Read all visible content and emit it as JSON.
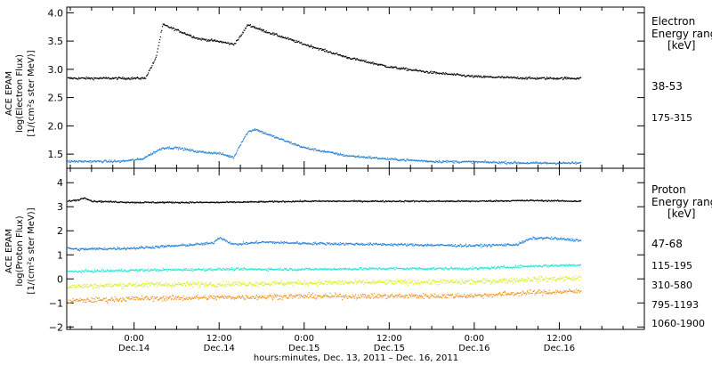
{
  "colors": {
    "black": "#000000",
    "blue": "#1f7fd6",
    "cyan": "#1ee6d2",
    "yellow": "#d8ee1a",
    "orange": "#f09020"
  },
  "x_axis": {
    "title": "hours:minutes, Dec. 13, 2011 – Dec. 16, 2011",
    "ticks": [
      {
        "time": "0:00",
        "date": "Dec.14",
        "hour": 24
      },
      {
        "time": "12:00",
        "date": "Dec.14",
        "hour": 36
      },
      {
        "time": "0:00",
        "date": "Dec.15",
        "hour": 48
      },
      {
        "time": "12:00",
        "date": "Dec.15",
        "hour": 60
      },
      {
        "time": "0:00",
        "date": "Dec.16",
        "hour": 72
      },
      {
        "time": "12:00",
        "date": "Dec.16",
        "hour": 84
      }
    ]
  },
  "chart_data": [
    {
      "type": "scatter",
      "panel": "electron",
      "ylabel": [
        "ACE EPAM",
        "log(Electron Flux)",
        "[1/(cm²s ster MeV)]"
      ],
      "ylim": [
        1.25,
        4.1
      ],
      "yticks": [
        "1.5",
        "2.0",
        "2.5",
        "3.0",
        "3.5",
        "4.0"
      ],
      "ytick_values": [
        1.5,
        2.0,
        2.5,
        3.0,
        3.5,
        4.0
      ],
      "xlim_hours": [
        14.5,
        96
      ],
      "data_end_hour": 87,
      "legend": {
        "title": [
          "Electron",
          "Energy ranges",
          "[keV]"
        ]
      },
      "series": [
        {
          "name": "38-53",
          "color": "#000000",
          "x": [
            14.5,
            22,
            24,
            25.5,
            27,
            28,
            30,
            33,
            36,
            38,
            39,
            40,
            41,
            42,
            48,
            54,
            60,
            66,
            72,
            80,
            87
          ],
          "y": [
            2.85,
            2.85,
            2.85,
            2.85,
            3.2,
            3.8,
            3.7,
            3.55,
            3.5,
            3.45,
            3.6,
            3.8,
            3.75,
            3.7,
            3.45,
            3.22,
            3.05,
            2.95,
            2.88,
            2.85,
            2.85
          ]
        },
        {
          "name": "175-315",
          "color": "#1f7fd6",
          "x": [
            14.5,
            22,
            25,
            28,
            30,
            33,
            36,
            38,
            39,
            40,
            41,
            44,
            48,
            54,
            60,
            66,
            72,
            80,
            87
          ],
          "y": [
            1.38,
            1.38,
            1.42,
            1.62,
            1.62,
            1.55,
            1.52,
            1.45,
            1.7,
            1.9,
            1.95,
            1.8,
            1.62,
            1.48,
            1.42,
            1.38,
            1.37,
            1.35,
            1.35
          ]
        }
      ]
    },
    {
      "type": "scatter",
      "panel": "proton",
      "ylabel": [
        "ACE EPAM",
        "log(Proton Flux)",
        "[1/(cm²s ster MeV)]"
      ],
      "ylim": [
        -2.1,
        4.6
      ],
      "yticks": [
        "−2",
        "−1",
        "0",
        "1",
        "2",
        "3",
        "4"
      ],
      "ytick_values": [
        -2,
        -1,
        0,
        1,
        2,
        3,
        4
      ],
      "xlim_hours": [
        14.5,
        96
      ],
      "data_end_hour": 87,
      "legend": {
        "title": [
          "Proton",
          "Energy ranges",
          "[keV]"
        ]
      },
      "series": [
        {
          "name": "47-68",
          "color": "#000000",
          "x": [
            14.5,
            16,
            17,
            18,
            24,
            36,
            48,
            60,
            72,
            80,
            87
          ],
          "y": [
            3.25,
            3.3,
            3.4,
            3.25,
            3.2,
            3.2,
            3.25,
            3.25,
            3.25,
            3.28,
            3.25
          ]
        },
        {
          "name": "115-195",
          "color": "#1f7fd6",
          "x": [
            14.5,
            16,
            24,
            30,
            35,
            36,
            38,
            42,
            48,
            60,
            72,
            78,
            80,
            82,
            87
          ],
          "y": [
            1.3,
            1.25,
            1.3,
            1.4,
            1.5,
            1.75,
            1.45,
            1.55,
            1.5,
            1.45,
            1.4,
            1.45,
            1.7,
            1.72,
            1.62
          ]
        },
        {
          "name": "310-580",
          "color": "#1ee6d2",
          "x": [
            14.5,
            24,
            36,
            48,
            60,
            72,
            80,
            87
          ],
          "y": [
            0.32,
            0.38,
            0.42,
            0.42,
            0.45,
            0.45,
            0.55,
            0.6
          ]
        },
        {
          "name": "795-1193",
          "color": "#d8ee1a",
          "x": [
            14.5,
            24,
            36,
            48,
            60,
            72,
            80,
            87
          ],
          "y": [
            -0.3,
            -0.22,
            -0.2,
            -0.15,
            -0.12,
            -0.1,
            0.0,
            0.05
          ]
        },
        {
          "name": "1060-1900",
          "color": "#f09020",
          "x": [
            14.5,
            24,
            36,
            48,
            60,
            72,
            80,
            87
          ],
          "y": [
            -0.9,
            -0.8,
            -0.75,
            -0.7,
            -0.7,
            -0.68,
            -0.55,
            -0.5
          ]
        }
      ]
    }
  ]
}
